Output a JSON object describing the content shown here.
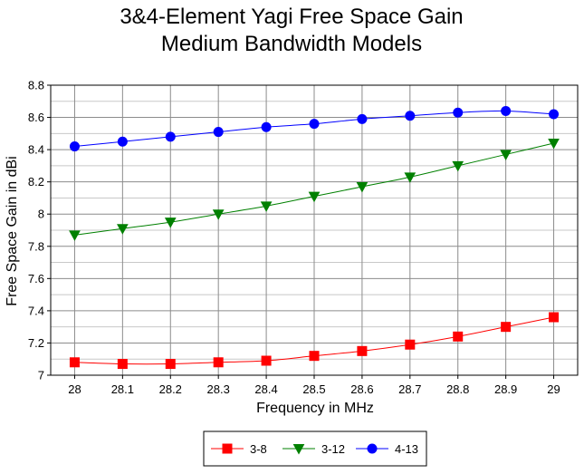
{
  "chart_data": {
    "type": "line",
    "title_lines": [
      "3&4-Element Yagi Free Space Gain",
      "Medium Bandwidth Models"
    ],
    "xlabel": "Frequency in MHz",
    "ylabel": "Free Space Gain in dBi",
    "x": [
      28,
      28.1,
      28.2,
      28.3,
      28.4,
      28.5,
      28.6,
      28.7,
      28.8,
      28.9,
      29
    ],
    "x_tick_labels": [
      "28",
      "28.1",
      "28.2",
      "28.3",
      "28.4",
      "28.5",
      "28.6",
      "28.7",
      "28.8",
      "28.9",
      "29"
    ],
    "y_tick_labels": [
      "7",
      "7.2",
      "7.4",
      "7.6",
      "7.8",
      "8",
      "8.2",
      "8.4",
      "8.6",
      "8.8"
    ],
    "xlim": [
      27.95,
      29.05
    ],
    "ylim": [
      7,
      8.8
    ],
    "y_ticks": [
      7,
      7.2,
      7.4,
      7.6,
      7.8,
      8,
      8.2,
      8.4,
      8.6,
      8.8
    ],
    "grid": true,
    "legend_position": "bottom-center",
    "series": [
      {
        "name": "3-8",
        "color": "#ff0000",
        "marker": "square",
        "values": [
          7.08,
          7.07,
          7.07,
          7.08,
          7.09,
          7.12,
          7.15,
          7.19,
          7.24,
          7.3,
          7.36
        ]
      },
      {
        "name": "3-12",
        "color": "#008000",
        "marker": "triangle-down",
        "values": [
          7.87,
          7.91,
          7.95,
          8.0,
          8.05,
          8.11,
          8.17,
          8.23,
          8.3,
          8.37,
          8.44
        ]
      },
      {
        "name": "4-13",
        "color": "#0000ff",
        "marker": "circle",
        "values": [
          8.42,
          8.45,
          8.48,
          8.51,
          8.54,
          8.56,
          8.59,
          8.61,
          8.63,
          8.64,
          8.62
        ]
      }
    ]
  }
}
